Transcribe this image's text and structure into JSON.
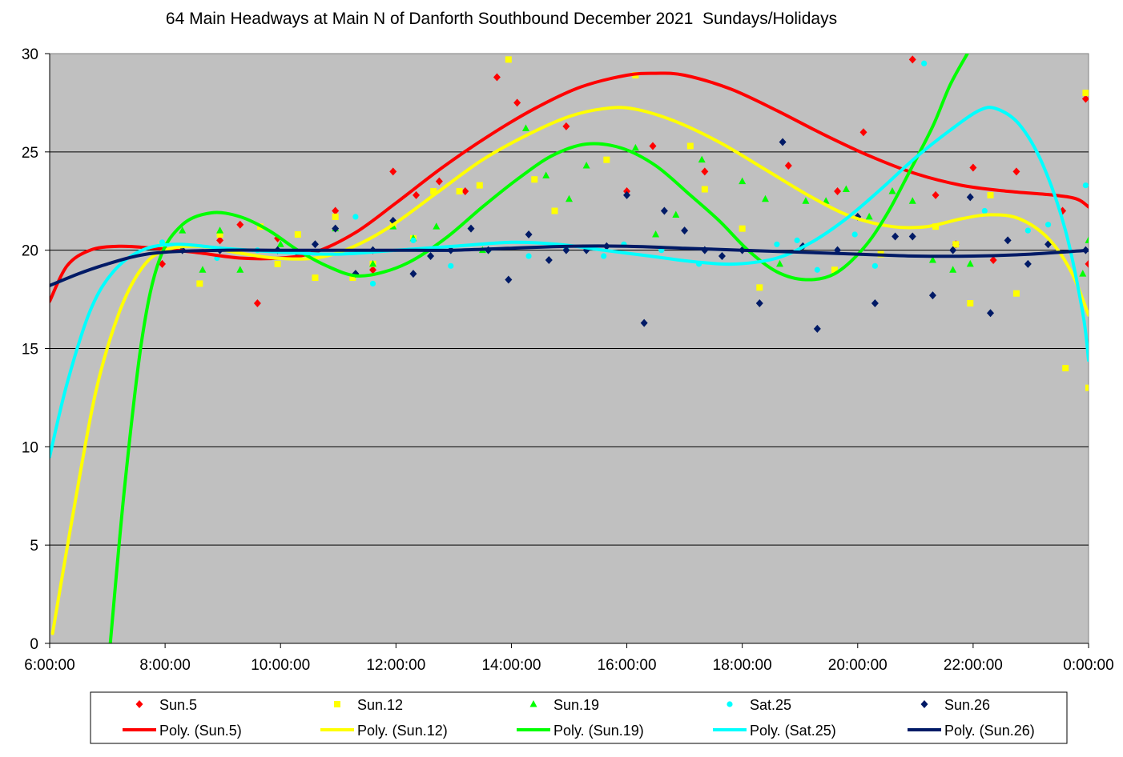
{
  "chart_data": {
    "type": "scatter",
    "title": "64 Main Headways at Main N of Danforth Southbound December 2021  Sundays/Holidays",
    "xlabel": "",
    "ylabel": "",
    "x_ticks": [
      "6:00:00",
      "8:00:00",
      "10:00:00",
      "12:00:00",
      "14:00:00",
      "16:00:00",
      "18:00:00",
      "20:00:00",
      "22:00:00",
      "0:00:00"
    ],
    "x_range_hours": [
      6,
      24
    ],
    "ylim": [
      0,
      30
    ],
    "y_ticks": [
      0,
      5,
      10,
      15,
      20,
      25,
      30
    ],
    "grid": "horizontal",
    "background": "#c0c0c0",
    "legend_position": "bottom",
    "series": [
      {
        "name": "Sun.5",
        "color": "#ff0000",
        "marker": "diamond",
        "points": [
          [
            7.95,
            19.3
          ],
          [
            8.95,
            20.5
          ],
          [
            9.3,
            21.3
          ],
          [
            9.6,
            17.3
          ],
          [
            9.95,
            20.6
          ],
          [
            10.95,
            22
          ],
          [
            11.6,
            19
          ],
          [
            11.95,
            24
          ],
          [
            12.35,
            22.8
          ],
          [
            12.75,
            23.5
          ],
          [
            13.2,
            23
          ],
          [
            13.75,
            28.8
          ],
          [
            14.1,
            27.5
          ],
          [
            14.95,
            26.3
          ],
          [
            16,
            23
          ],
          [
            16.45,
            25.3
          ],
          [
            17.35,
            24
          ],
          [
            18.8,
            24.3
          ],
          [
            19.65,
            23
          ],
          [
            20.1,
            26
          ],
          [
            20.95,
            29.7
          ],
          [
            21.35,
            22.8
          ],
          [
            21.7,
            20.3
          ],
          [
            22,
            24.2
          ],
          [
            22.35,
            19.5
          ],
          [
            22.75,
            24
          ],
          [
            23.55,
            22
          ],
          [
            23.95,
            27.7
          ],
          [
            24,
            19.3
          ]
        ],
        "trend": [
          [
            6,
            17.4
          ],
          [
            6.3,
            19.2
          ],
          [
            6.7,
            20
          ],
          [
            7.2,
            20.2
          ],
          [
            7.8,
            20.1
          ],
          [
            8.5,
            19.9
          ],
          [
            9.3,
            19.6
          ],
          [
            10,
            19.6
          ],
          [
            10.6,
            19.9
          ],
          [
            11.3,
            20.9
          ],
          [
            12,
            22.4
          ],
          [
            12.8,
            24.2
          ],
          [
            13.6,
            25.8
          ],
          [
            14.4,
            27.2
          ],
          [
            15.2,
            28.3
          ],
          [
            16,
            28.9
          ],
          [
            16.5,
            29
          ],
          [
            17,
            28.9
          ],
          [
            17.8,
            28.2
          ],
          [
            18.6,
            27.1
          ],
          [
            19.4,
            25.9
          ],
          [
            20.2,
            24.8
          ],
          [
            21,
            23.9
          ],
          [
            21.8,
            23.3
          ],
          [
            22.6,
            23
          ],
          [
            23.4,
            22.8
          ],
          [
            23.8,
            22.6
          ],
          [
            24,
            22.2
          ]
        ]
      },
      {
        "name": "Sun.12",
        "color": "#ffff00",
        "marker": "square",
        "points": [
          [
            7.95,
            20.3
          ],
          [
            8.6,
            18.3
          ],
          [
            8.95,
            20.8
          ],
          [
            9.65,
            21.2
          ],
          [
            9.95,
            19.3
          ],
          [
            10.3,
            20.8
          ],
          [
            10.6,
            18.6
          ],
          [
            10.95,
            21.7
          ],
          [
            11.25,
            18.6
          ],
          [
            11.6,
            19.3
          ],
          [
            11.95,
            21.3
          ],
          [
            12.3,
            20.6
          ],
          [
            12.65,
            23
          ],
          [
            13.1,
            23
          ],
          [
            13.45,
            23.3
          ],
          [
            13.95,
            29.7
          ],
          [
            14.4,
            23.6
          ],
          [
            14.75,
            22
          ],
          [
            15.65,
            24.6
          ],
          [
            16.15,
            28.9
          ],
          [
            17.1,
            25.3
          ],
          [
            17.35,
            23.1
          ],
          [
            18,
            21.1
          ],
          [
            18.3,
            18.1
          ],
          [
            19.6,
            19
          ],
          [
            20.4,
            19.8
          ],
          [
            21.35,
            21.2
          ],
          [
            21.7,
            20.3
          ],
          [
            21.95,
            17.3
          ],
          [
            22.3,
            22.8
          ],
          [
            22.75,
            17.8
          ],
          [
            23.6,
            14
          ],
          [
            23.95,
            28
          ],
          [
            24,
            13
          ]
        ],
        "trend": [
          [
            6.05,
            0.5
          ],
          [
            6.4,
            6.5
          ],
          [
            6.8,
            12.8
          ],
          [
            7.2,
            16.8
          ],
          [
            7.6,
            19.1
          ],
          [
            8,
            20
          ],
          [
            8.6,
            20.2
          ],
          [
            9.2,
            19.9
          ],
          [
            9.9,
            19.6
          ],
          [
            10.6,
            19.6
          ],
          [
            11.2,
            20.1
          ],
          [
            11.9,
            21.2
          ],
          [
            12.7,
            22.9
          ],
          [
            13.5,
            24.6
          ],
          [
            14.3,
            25.9
          ],
          [
            15,
            26.8
          ],
          [
            15.6,
            27.2
          ],
          [
            16.1,
            27.2
          ],
          [
            16.8,
            26.6
          ],
          [
            17.6,
            25.5
          ],
          [
            18.4,
            24.1
          ],
          [
            19.2,
            22.7
          ],
          [
            19.9,
            21.7
          ],
          [
            20.6,
            21.2
          ],
          [
            21.2,
            21.2
          ],
          [
            21.8,
            21.6
          ],
          [
            22.3,
            21.8
          ],
          [
            22.8,
            21.6
          ],
          [
            23.3,
            20.6
          ],
          [
            23.7,
            18.9
          ],
          [
            24,
            16.7
          ]
        ]
      },
      {
        "name": "Sun.19",
        "color": "#00ff00",
        "marker": "triangle",
        "points": [
          [
            8.3,
            21
          ],
          [
            8.65,
            19
          ],
          [
            8.95,
            21
          ],
          [
            9.3,
            19
          ],
          [
            10,
            20.3
          ],
          [
            10.95,
            21.1
          ],
          [
            11.6,
            19.3
          ],
          [
            11.95,
            21.2
          ],
          [
            12.3,
            20.6
          ],
          [
            12.7,
            21.2
          ],
          [
            13.5,
            20
          ],
          [
            14.25,
            26.2
          ],
          [
            14.6,
            23.8
          ],
          [
            15,
            22.6
          ],
          [
            15.3,
            24.3
          ],
          [
            16.15,
            25.2
          ],
          [
            16.5,
            20.8
          ],
          [
            16.85,
            21.8
          ],
          [
            17.3,
            24.6
          ],
          [
            18,
            23.5
          ],
          [
            18.4,
            22.6
          ],
          [
            18.65,
            19.3
          ],
          [
            19.1,
            22.5
          ],
          [
            19.45,
            22.5
          ],
          [
            19.8,
            23.1
          ],
          [
            20.2,
            21.7
          ],
          [
            20.6,
            23
          ],
          [
            20.95,
            22.5
          ],
          [
            21.3,
            19.5
          ],
          [
            21.65,
            19
          ],
          [
            21.95,
            19.3
          ],
          [
            23.9,
            18.8
          ],
          [
            24,
            20.5
          ]
        ],
        "trend": [
          [
            7.05,
            0
          ],
          [
            7.3,
            8
          ],
          [
            7.6,
            15.5
          ],
          [
            7.9,
            19.5
          ],
          [
            8.3,
            21.3
          ],
          [
            8.8,
            21.9
          ],
          [
            9.3,
            21.7
          ],
          [
            9.8,
            21
          ],
          [
            10.3,
            20
          ],
          [
            10.8,
            19.2
          ],
          [
            11.3,
            18.7
          ],
          [
            11.8,
            18.9
          ],
          [
            12.3,
            19.5
          ],
          [
            12.9,
            20.7
          ],
          [
            13.5,
            22.2
          ],
          [
            14.1,
            23.6
          ],
          [
            14.7,
            24.8
          ],
          [
            15.3,
            25.4
          ],
          [
            15.9,
            25.2
          ],
          [
            16.5,
            24.3
          ],
          [
            17.1,
            22.8
          ],
          [
            17.6,
            21.5
          ],
          [
            18.1,
            20
          ],
          [
            18.6,
            18.9
          ],
          [
            19.1,
            18.5
          ],
          [
            19.6,
            18.8
          ],
          [
            20.1,
            20.1
          ],
          [
            20.5,
            21.8
          ],
          [
            20.9,
            24
          ],
          [
            21.3,
            26.3
          ],
          [
            21.6,
            28.4
          ],
          [
            21.9,
            30
          ]
        ]
      },
      {
        "name": "Sat.25",
        "color": "#00ffff",
        "marker": "circle",
        "points": [
          [
            7.95,
            20.4
          ],
          [
            8.9,
            19.6
          ],
          [
            9.6,
            20
          ],
          [
            10.3,
            19.7
          ],
          [
            11.3,
            21.7
          ],
          [
            11.6,
            18.3
          ],
          [
            12.3,
            20.5
          ],
          [
            12.95,
            19.2
          ],
          [
            13.6,
            20
          ],
          [
            14.3,
            19.7
          ],
          [
            14.95,
            20.1
          ],
          [
            15.6,
            19.7
          ],
          [
            15.95,
            20.3
          ],
          [
            16.6,
            20
          ],
          [
            17.25,
            19.3
          ],
          [
            18.6,
            20.3
          ],
          [
            18.95,
            20.5
          ],
          [
            19.3,
            19
          ],
          [
            19.95,
            20.8
          ],
          [
            20.3,
            19.2
          ],
          [
            21.15,
            29.5
          ],
          [
            22.2,
            22
          ],
          [
            22.95,
            21
          ],
          [
            23.3,
            21.3
          ],
          [
            23.95,
            23.3
          ]
        ],
        "trend": [
          [
            6,
            9.5
          ],
          [
            6.3,
            13.2
          ],
          [
            6.7,
            16.9
          ],
          [
            7.1,
            18.9
          ],
          [
            7.6,
            20
          ],
          [
            8.2,
            20.3
          ],
          [
            9,
            20.1
          ],
          [
            10,
            19.9
          ],
          [
            11,
            19.8
          ],
          [
            12,
            20
          ],
          [
            13,
            20.2
          ],
          [
            14,
            20.4
          ],
          [
            14.8,
            20.3
          ],
          [
            15.6,
            20
          ],
          [
            16.4,
            19.7
          ],
          [
            17.2,
            19.4
          ],
          [
            17.9,
            19.3
          ],
          [
            18.6,
            19.6
          ],
          [
            19.2,
            20.4
          ],
          [
            19.8,
            21.6
          ],
          [
            20.4,
            23.1
          ],
          [
            21,
            24.7
          ],
          [
            21.6,
            26.1
          ],
          [
            22.1,
            27.1
          ],
          [
            22.4,
            27.2
          ],
          [
            22.8,
            26.4
          ],
          [
            23.2,
            24.4
          ],
          [
            23.6,
            21
          ],
          [
            23.9,
            16.8
          ],
          [
            24,
            14.4
          ]
        ]
      },
      {
        "name": "Sun.26",
        "color": "#001a66",
        "marker": "diamond",
        "points": [
          [
            8.3,
            20
          ],
          [
            8.95,
            20
          ],
          [
            9.95,
            20
          ],
          [
            10.3,
            19.7
          ],
          [
            10.6,
            20.3
          ],
          [
            10.95,
            21.1
          ],
          [
            11.3,
            18.8
          ],
          [
            11.6,
            20
          ],
          [
            11.95,
            21.5
          ],
          [
            12.3,
            18.8
          ],
          [
            12.6,
            19.7
          ],
          [
            12.95,
            20
          ],
          [
            13.3,
            21.1
          ],
          [
            13.6,
            20
          ],
          [
            13.95,
            18.5
          ],
          [
            14.3,
            20.8
          ],
          [
            14.65,
            19.5
          ],
          [
            14.95,
            20
          ],
          [
            15.3,
            20
          ],
          [
            15.65,
            20.2
          ],
          [
            16,
            22.8
          ],
          [
            16.3,
            16.3
          ],
          [
            16.65,
            22
          ],
          [
            17,
            21
          ],
          [
            17.35,
            20
          ],
          [
            17.65,
            19.7
          ],
          [
            18,
            20
          ],
          [
            18.3,
            17.3
          ],
          [
            18.7,
            25.5
          ],
          [
            19.05,
            20.2
          ],
          [
            19.3,
            16
          ],
          [
            19.65,
            20
          ],
          [
            20,
            21.7
          ],
          [
            20.3,
            17.3
          ],
          [
            20.65,
            20.7
          ],
          [
            20.95,
            20.7
          ],
          [
            21.3,
            17.7
          ],
          [
            21.65,
            20
          ],
          [
            21.95,
            22.7
          ],
          [
            22.3,
            16.8
          ],
          [
            22.6,
            20.5
          ],
          [
            22.95,
            19.3
          ],
          [
            23.3,
            20.3
          ],
          [
            23.95,
            20
          ]
        ],
        "trend": [
          [
            6,
            18.2
          ],
          [
            6.5,
            18.8
          ],
          [
            7,
            19.3
          ],
          [
            7.5,
            19.7
          ],
          [
            8,
            19.9
          ],
          [
            9,
            20
          ],
          [
            10,
            20
          ],
          [
            11,
            20
          ],
          [
            12,
            20
          ],
          [
            13,
            20
          ],
          [
            14,
            20.1
          ],
          [
            15,
            20.2
          ],
          [
            16,
            20.2
          ],
          [
            17,
            20.1
          ],
          [
            18,
            20
          ],
          [
            19,
            19.9
          ],
          [
            20,
            19.8
          ],
          [
            21,
            19.7
          ],
          [
            22,
            19.7
          ],
          [
            23,
            19.8
          ],
          [
            24,
            20
          ]
        ]
      }
    ]
  }
}
